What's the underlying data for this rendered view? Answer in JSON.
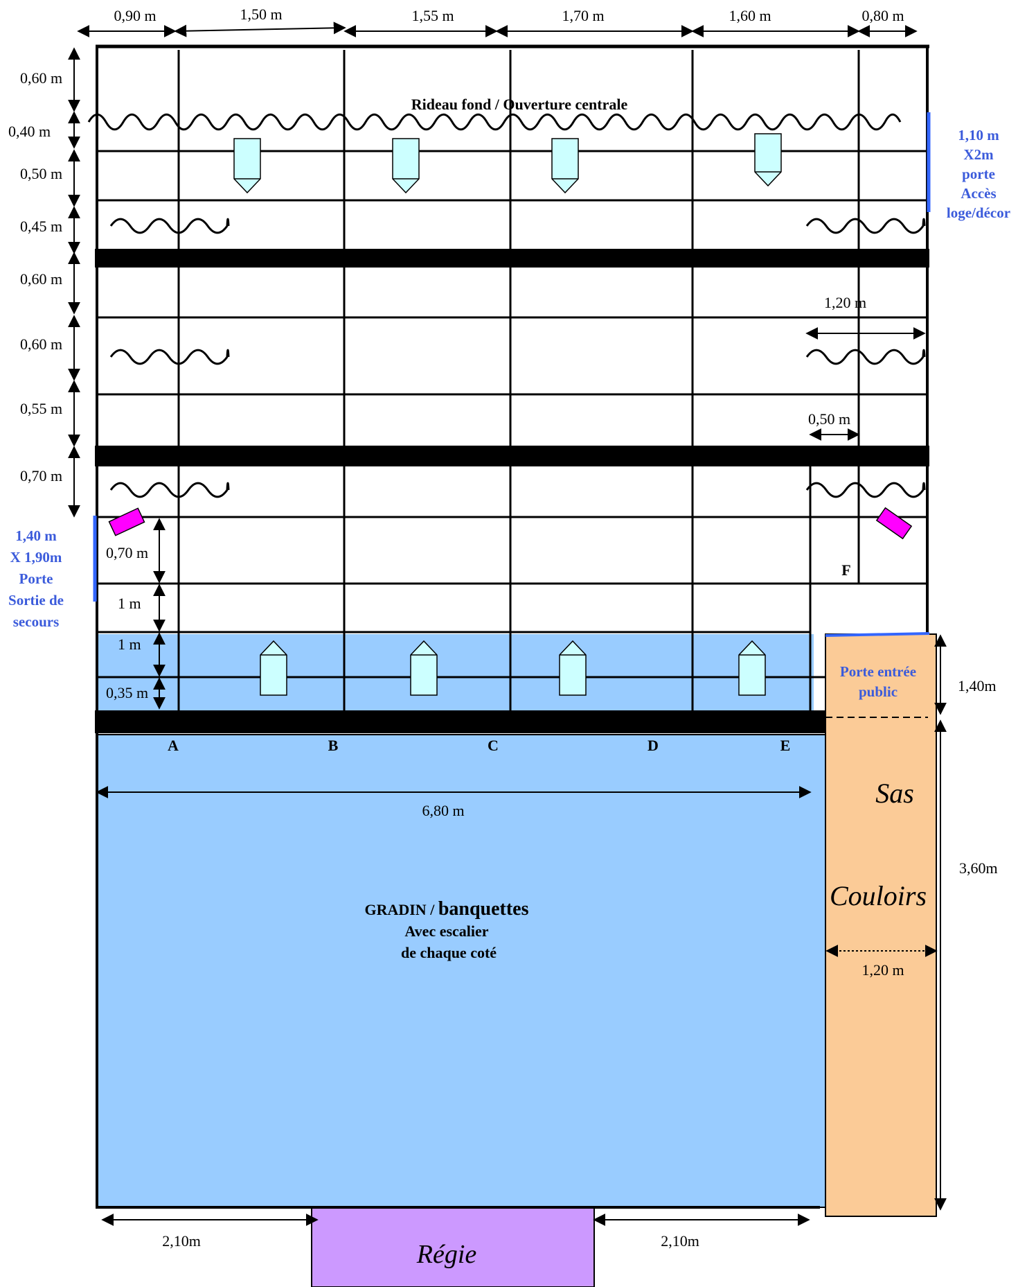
{
  "top_dims": [
    "0,90 m",
    "1,50 m",
    "1,55 m",
    "1,70 m",
    "1,60 m",
    "0,80 m"
  ],
  "left_dims": [
    "0,60 m",
    "0,40 m",
    "0,50 m",
    "0,45 m",
    "0,60 m",
    "0,60 m",
    "0,55 m",
    "0,70 m"
  ],
  "inner_dims": [
    "0,70 m",
    "1 m",
    "1 m",
    "0,35 m"
  ],
  "curtain_label": "Rideau fond  / Ouverture centrale",
  "right_door_label": [
    "1,10 m",
    "X2m",
    "porte",
    "Accès",
    "loge/décor"
  ],
  "left_door_label": [
    "1,40 m",
    "X 1,90m",
    "Porte",
    "Sortie de",
    "secours"
  ],
  "dim_120_top": "1,20 m",
  "dim_050": "0,50 m",
  "letter_f": "F",
  "column_letters": [
    "A",
    "B",
    "C",
    "D",
    "E"
  ],
  "width_dim": "6,80 m",
  "public_door_label": [
    "Porte entrée",
    "public"
  ],
  "dim_140": "1,40m",
  "dim_360": "3,60m",
  "sas_label": "Sas",
  "couloirs_label": "Couloirs",
  "corridor_width": "1,20 m",
  "gradin_label": [
    "GRADIN / ",
    "banquettes"
  ],
  "gradin_sub": [
    "Avec escalier",
    "de chaque coté"
  ],
  "bottom_dims": [
    "2,10m",
    "2,10m"
  ],
  "regie_label": "Régie",
  "colors": {
    "gradin": "#99ccff",
    "sas": "#fbcb97",
    "regie": "#cc99ff",
    "door": "#3366ff",
    "light": "#ccffff",
    "magenta": "#ff00ff",
    "door_text": "#3b5bdb"
  }
}
